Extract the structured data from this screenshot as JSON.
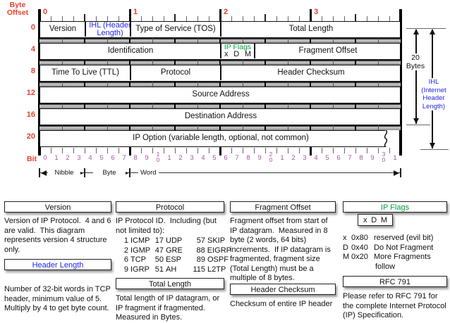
{
  "colors": {
    "red": "#e8402c",
    "blue": "#2323e8",
    "green": "#00a040",
    "purple": "#a653a8"
  },
  "diagram": {
    "byte_offset_label": "Byte Offset",
    "top_ruler_numbers": [
      "0",
      "1",
      "2",
      "3"
    ],
    "row_offsets": [
      "0",
      "4",
      "8",
      "12",
      "16",
      "20"
    ],
    "rows": [
      {
        "cells": [
          {
            "label": "Version",
            "bits": 4
          },
          {
            "label": "IHL (Header Length)",
            "bits": 4,
            "color": "blue"
          },
          {
            "label": "Type of Service (TOS)",
            "bits": 8
          },
          {
            "label": "Total Length",
            "bits": 16
          }
        ]
      },
      {
        "cells": [
          {
            "label": "Identification",
            "bits": 16
          },
          {
            "label": "IP Flags",
            "bits": 3,
            "color": "green",
            "sub_letters": [
              "x",
              "D",
              "M"
            ]
          },
          {
            "label": "Fragment Offset",
            "bits": 13
          }
        ]
      },
      {
        "cells": [
          {
            "label": "Time To Live (TTL)",
            "bits": 8
          },
          {
            "label": "Protocol",
            "bits": 8
          },
          {
            "label": "Header Checksum",
            "bits": 16
          }
        ]
      },
      {
        "cells": [
          {
            "label": "Source Address",
            "bits": 32
          }
        ]
      },
      {
        "cells": [
          {
            "label": "Destination Address",
            "bits": 32
          }
        ]
      },
      {
        "cells": [
          {
            "label": "IP Option (variable length, optional, not common)",
            "bits": 32
          }
        ],
        "torn": true
      }
    ],
    "bit_label": "Bit",
    "bit_numbers": [
      "0",
      "1",
      "2",
      "3",
      "4",
      "5",
      "6",
      "7",
      "8",
      "9",
      "10",
      "1",
      "2",
      "3",
      "4",
      "5",
      "6",
      "7",
      "8",
      "9",
      "20",
      "1",
      "2",
      "3",
      "4",
      "5",
      "6",
      "7",
      "8",
      "9",
      "30",
      "1"
    ],
    "scale_labels": [
      "Nibble",
      "Byte",
      "Word"
    ],
    "right_side": {
      "bytes_label": "20 Bytes",
      "ihl_label": "IHL (Internet Header Length)"
    }
  },
  "notes": {
    "columns": [
      {
        "blocks": [
          {
            "type": "title",
            "text": "Version"
          },
          {
            "type": "text",
            "text": "Version of IP Protocol.  4 and 6 are valid.  This diagram represents version 4 structure only."
          },
          {
            "type": "title",
            "text": "Header Length",
            "color": "blue"
          },
          {
            "type": "text",
            "text": "Number of 32-bit words in TCP header, minimum value of 5.  Multiply by 4 to get byte count."
          }
        ]
      },
      {
        "blocks": [
          {
            "type": "title",
            "text": "Protocol"
          },
          {
            "type": "text",
            "text": "IP Protocol ID.  Including (but not limited to):"
          },
          {
            "type": "table",
            "rows": [
              [
                [
                  "1",
                  "ICMP"
                ],
                [
                  "17",
                  "UDP"
                ],
                [
                  "57",
                  "SKIP"
                ]
              ],
              [
                [
                  "2",
                  "IGMP"
                ],
                [
                  "47",
                  "GRE"
                ],
                [
                  "88",
                  "EIGRP"
                ]
              ],
              [
                [
                  "6",
                  "TCP"
                ],
                [
                  "50",
                  "ESP"
                ],
                [
                  "89",
                  "OSPF"
                ]
              ],
              [
                [
                  "9",
                  "IGRP"
                ],
                [
                  "51",
                  "AH"
                ],
                [
                  "115",
                  "L2TP"
                ]
              ]
            ]
          },
          {
            "type": "title",
            "text": "Total Length"
          },
          {
            "type": "text",
            "text": "Total length of IP datagram, or IP fragment if fragmented.  Measured in Bytes."
          }
        ]
      },
      {
        "blocks": [
          {
            "type": "title",
            "text": "Fragment Offset"
          },
          {
            "type": "text",
            "text": "Fragment offset from start of IP datagram.  Measured in 8 byte (2 words, 64 bits) increments.  If IP datagram is fragmented, fragment size (Total Length) must be a multiple of 8 bytes."
          },
          {
            "type": "title",
            "text": "Header Checksum"
          },
          {
            "type": "text",
            "text": "Checksum of entire IP header"
          }
        ]
      },
      {
        "blocks": [
          {
            "type": "title",
            "text": "IP Flags",
            "color": "green"
          },
          {
            "type": "flagbox",
            "letters": [
              "x",
              "D",
              "M"
            ]
          },
          {
            "type": "flags",
            "rows": [
              [
                "x",
                "0x80",
                "reserved (evil bit)"
              ],
              [
                "D",
                "0x40",
                "Do Not Fragment"
              ],
              [
                "M",
                "0x20",
                "More Fragments"
              ],
              [
                "",
                "",
                "follow"
              ]
            ]
          },
          {
            "type": "title",
            "text": "RFC 791"
          },
          {
            "type": "text",
            "text": "Please refer to RFC 791 for the complete Internet Protocol (IP) Specification."
          }
        ]
      }
    ]
  }
}
